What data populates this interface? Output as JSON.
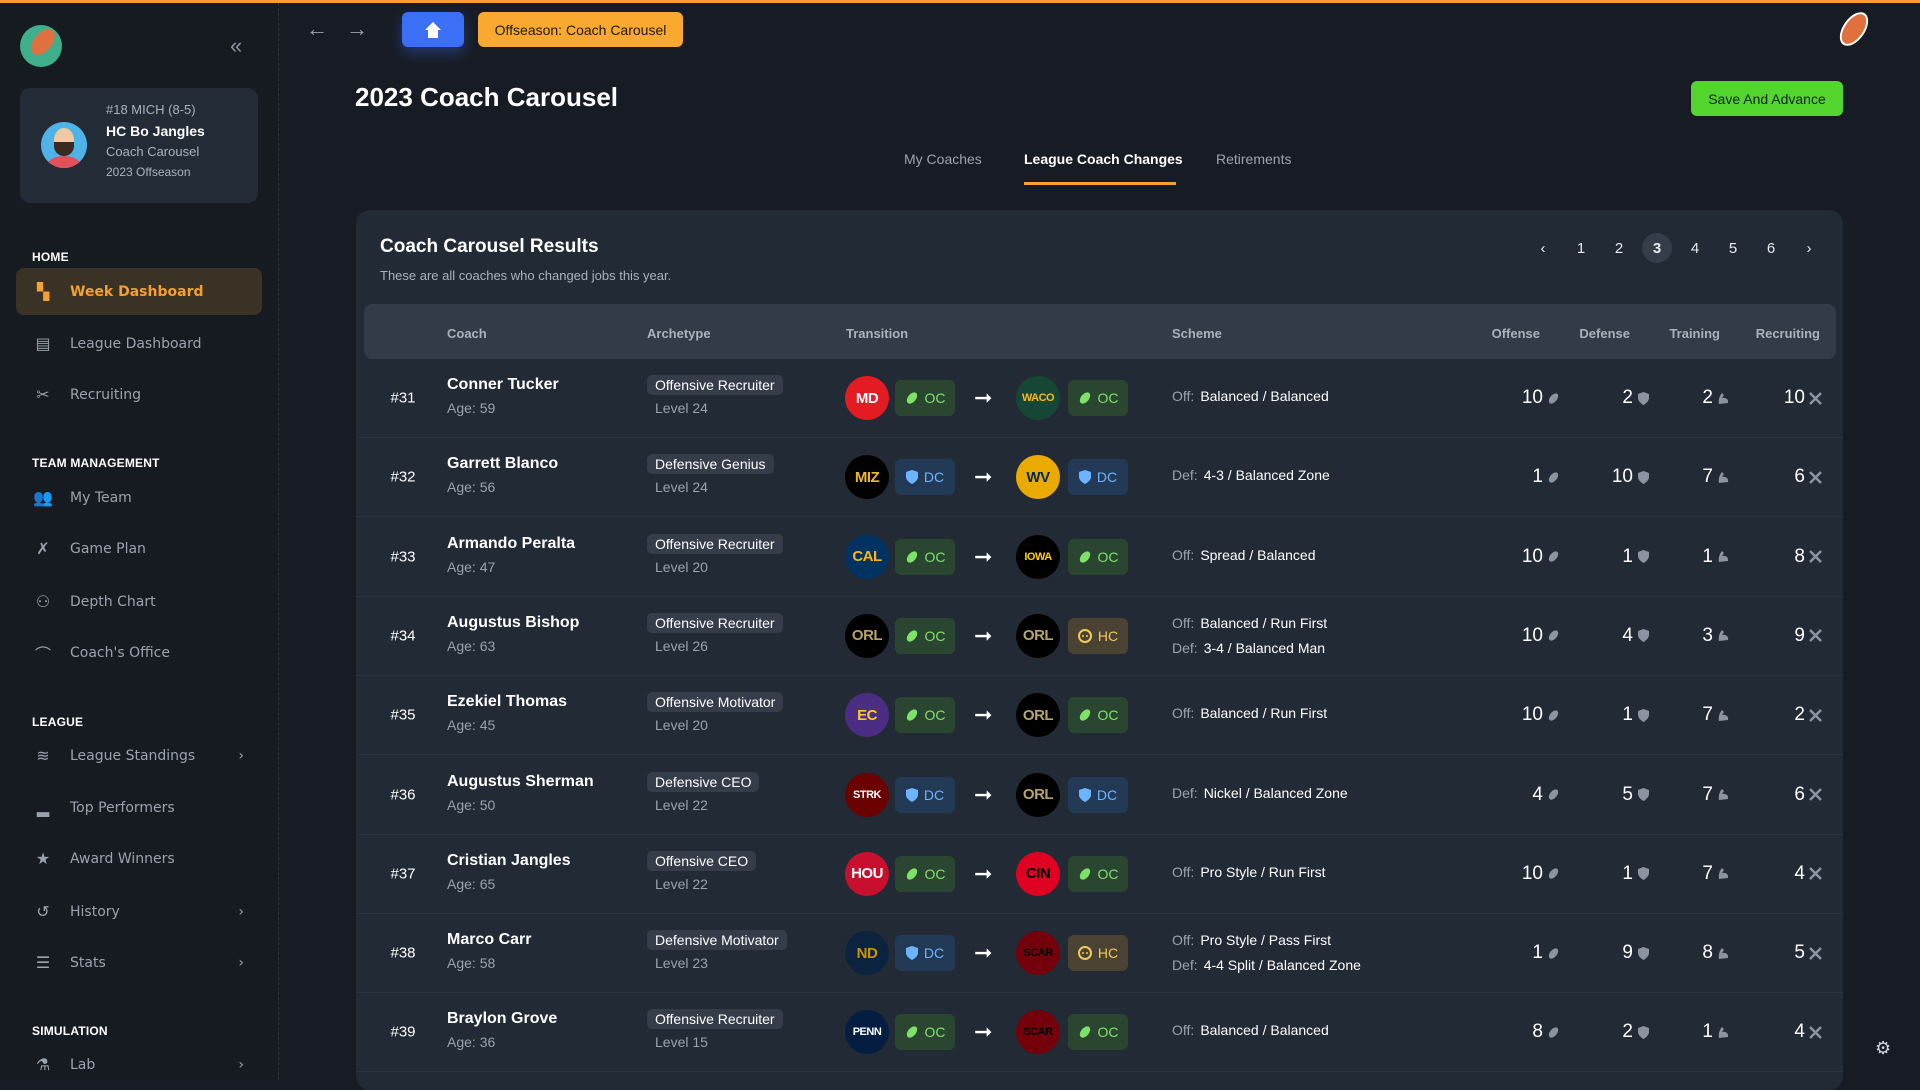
{
  "colors": {
    "accent": "#f5a030",
    "home_button": "#3b6ff5",
    "save_button": "#52d62e",
    "oc": "#7ee26a",
    "dc": "#6cb4ff",
    "hc": "#f5c95a"
  },
  "profile": {
    "team": "#18 MICH (8-5)",
    "name": "HC Bo Jangles",
    "phase": "Coach Carousel",
    "season": "2023 Offseason"
  },
  "sidebar": {
    "sections": [
      {
        "title": "HOME",
        "items": [
          {
            "label": "Week Dashboard",
            "icon": "dashboard-icon",
            "active": true
          },
          {
            "label": "League Dashboard",
            "icon": "table-icon"
          },
          {
            "label": "Recruiting",
            "icon": "recruiting-icon"
          }
        ]
      },
      {
        "title": "TEAM MANAGEMENT",
        "items": [
          {
            "label": "My Team",
            "icon": "team-icon"
          },
          {
            "label": "Game Plan",
            "icon": "playbook-icon"
          },
          {
            "label": "Depth Chart",
            "icon": "depth-chart-icon"
          },
          {
            "label": "Coach's Office",
            "icon": "desk-lamp-icon"
          }
        ]
      },
      {
        "title": "LEAGUE",
        "items": [
          {
            "label": "League Standings",
            "icon": "layers-icon",
            "chevron": true
          },
          {
            "label": "Top Performers",
            "icon": "podium-icon"
          },
          {
            "label": "Award Winners",
            "icon": "trophy-star-icon"
          },
          {
            "label": "History",
            "icon": "history-icon",
            "chevron": true
          },
          {
            "label": "Stats",
            "icon": "database-icon",
            "chevron": true
          }
        ]
      },
      {
        "title": "SIMULATION",
        "items": [
          {
            "label": "Lab",
            "icon": "flask-icon",
            "chevron": true
          }
        ]
      }
    ]
  },
  "topbar": {
    "phase_button": "Offseason: Coach Carousel"
  },
  "page": {
    "title": "2023 Coach Carousel",
    "save_label": "Save And Advance"
  },
  "tabs": [
    {
      "label": "My Coaches"
    },
    {
      "label": "League Coach Changes",
      "active": true
    },
    {
      "label": "Retirements"
    }
  ],
  "card": {
    "title": "Coach Carousel Results",
    "subtitle": "These are all coaches who changed jobs this year."
  },
  "pagination": {
    "pages": [
      "1",
      "2",
      "3",
      "4",
      "5",
      "6"
    ],
    "current": "3",
    "prev": "‹",
    "next": "›"
  },
  "table": {
    "headers": {
      "coach": "Coach",
      "archetype": "Archetype",
      "transition": "Transition",
      "scheme": "Scheme",
      "offense": "Offense",
      "defense": "Defense",
      "training": "Training",
      "recruiting": "Recruiting"
    },
    "rows": [
      {
        "rank": "#31",
        "name": "Conner Tucker",
        "age": "Age: 59",
        "archetype": "Offensive Recruiter",
        "level": "Level 24",
        "from": {
          "team": "MD",
          "bg": "#e31b23",
          "fg": "#ffffff",
          "role": "OC"
        },
        "to": {
          "team": "WACO",
          "bg": "#154734",
          "fg": "#ffb81c",
          "role": "OC"
        },
        "scheme": [
          {
            "label": "Off:",
            "value": "Balanced / Balanced"
          }
        ],
        "offense": "10",
        "defense": "2",
        "training": "2",
        "recruiting": "10"
      },
      {
        "rank": "#32",
        "name": "Garrett Blanco",
        "age": "Age: 56",
        "archetype": "Defensive Genius",
        "level": "Level 24",
        "from": {
          "team": "MIZ",
          "bg": "#000000",
          "fg": "#f1b82d",
          "role": "DC"
        },
        "to": {
          "team": "WV",
          "bg": "#eaaa00",
          "fg": "#002855",
          "role": "DC"
        },
        "scheme": [
          {
            "label": "Def:",
            "value": "4-3 / Balanced Zone"
          }
        ],
        "offense": "1",
        "defense": "10",
        "training": "7",
        "recruiting": "6"
      },
      {
        "rank": "#33",
        "name": "Armando Peralta",
        "age": "Age: 47",
        "archetype": "Offensive Recruiter",
        "level": "Level 20",
        "from": {
          "team": "CAL",
          "bg": "#003262",
          "fg": "#fdb515",
          "role": "OC"
        },
        "to": {
          "team": "IOWA",
          "bg": "#000000",
          "fg": "#ffcd00",
          "role": "OC"
        },
        "scheme": [
          {
            "label": "Off:",
            "value": "Spread / Balanced"
          }
        ],
        "offense": "10",
        "defense": "1",
        "training": "1",
        "recruiting": "8"
      },
      {
        "rank": "#34",
        "name": "Augustus Bishop",
        "age": "Age: 63",
        "archetype": "Offensive Recruiter",
        "level": "Level 26",
        "from": {
          "team": "ORL",
          "bg": "#000000",
          "fg": "#b9a36b",
          "role": "OC"
        },
        "to": {
          "team": "ORL",
          "bg": "#000000",
          "fg": "#b9a36b",
          "role": "HC"
        },
        "scheme": [
          {
            "label": "Off:",
            "value": "Balanced / Run First"
          },
          {
            "label": "Def:",
            "value": "3-4 / Balanced Man"
          }
        ],
        "offense": "10",
        "defense": "4",
        "training": "3",
        "recruiting": "9"
      },
      {
        "rank": "#35",
        "name": "Ezekiel Thomas",
        "age": "Age: 45",
        "archetype": "Offensive Motivator",
        "level": "Level 20",
        "from": {
          "team": "EC",
          "bg": "#4b2e83",
          "fg": "#ffc72c",
          "role": "OC"
        },
        "to": {
          "team": "ORL",
          "bg": "#000000",
          "fg": "#b9a36b",
          "role": "OC"
        },
        "scheme": [
          {
            "label": "Off:",
            "value": "Balanced / Run First"
          }
        ],
        "offense": "10",
        "defense": "1",
        "training": "7",
        "recruiting": "2"
      },
      {
        "rank": "#36",
        "name": "Augustus Sherman",
        "age": "Age: 50",
        "archetype": "Defensive CEO",
        "level": "Level 22",
        "from": {
          "team": "STRK",
          "bg": "#6b0000",
          "fg": "#ffffff",
          "role": "DC"
        },
        "to": {
          "team": "ORL",
          "bg": "#000000",
          "fg": "#b9a36b",
          "role": "DC"
        },
        "scheme": [
          {
            "label": "Def:",
            "value": "Nickel / Balanced Zone"
          }
        ],
        "offense": "4",
        "defense": "5",
        "training": "7",
        "recruiting": "6"
      },
      {
        "rank": "#37",
        "name": "Cristian Jangles",
        "age": "Age: 65",
        "archetype": "Offensive CEO",
        "level": "Level 22",
        "from": {
          "team": "HOU",
          "bg": "#c8102e",
          "fg": "#ffffff",
          "role": "OC"
        },
        "to": {
          "team": "CIN",
          "bg": "#e00122",
          "fg": "#000000",
          "role": "OC"
        },
        "scheme": [
          {
            "label": "Off:",
            "value": "Pro Style / Run First"
          }
        ],
        "offense": "10",
        "defense": "1",
        "training": "7",
        "recruiting": "4"
      },
      {
        "rank": "#38",
        "name": "Marco Carr",
        "age": "Age: 58",
        "archetype": "Defensive Motivator",
        "level": "Level 23",
        "from": {
          "team": "ND",
          "bg": "#0c2340",
          "fg": "#c99700",
          "role": "DC"
        },
        "to": {
          "team": "SCAR",
          "bg": "#73000a",
          "fg": "#000000",
          "role": "HC"
        },
        "scheme": [
          {
            "label": "Off:",
            "value": "Pro Style / Pass First"
          },
          {
            "label": "Def:",
            "value": "4-4 Split / Balanced Zone"
          }
        ],
        "offense": "1",
        "defense": "9",
        "training": "8",
        "recruiting": "5"
      },
      {
        "rank": "#39",
        "name": "Braylon Grove",
        "age": "Age: 36",
        "archetype": "Offensive Recruiter",
        "level": "Level 15",
        "from": {
          "team": "PENN",
          "bg": "#041e42",
          "fg": "#ffffff",
          "role": "OC"
        },
        "to": {
          "team": "SCAR",
          "bg": "#73000a",
          "fg": "#000000",
          "role": "OC"
        },
        "scheme": [
          {
            "label": "Off:",
            "value": "Balanced / Balanced"
          }
        ],
        "offense": "8",
        "defense": "2",
        "training": "1",
        "recruiting": "4"
      }
    ]
  }
}
